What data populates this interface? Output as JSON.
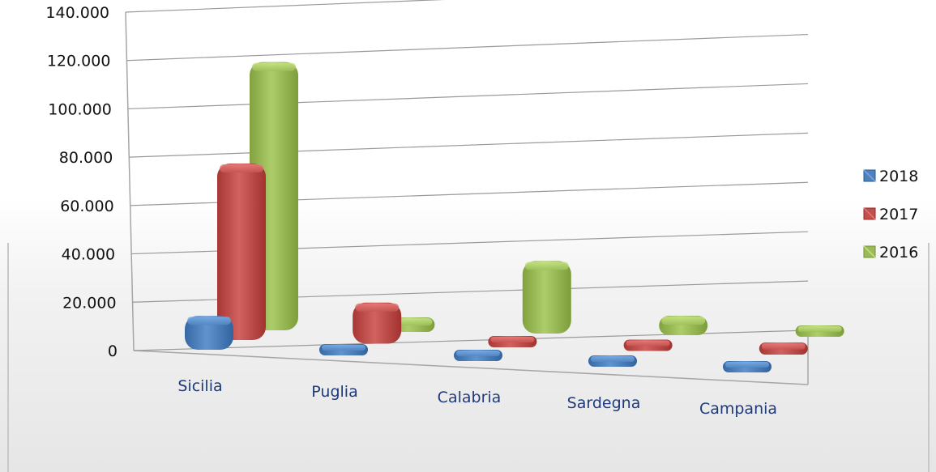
{
  "chart_data": {
    "type": "bar",
    "categories": [
      "Sicilia",
      "Puglia",
      "Calabria",
      "Sardegna",
      "Campania"
    ],
    "series": [
      {
        "name": "2018",
        "values": [
          14000,
          1200,
          1000,
          1500,
          1000
        ],
        "color": "#4f81bd"
      },
      {
        "name": "2017",
        "values": [
          73000,
          17000,
          4000,
          4000,
          5000
        ],
        "color": "#c0504d"
      },
      {
        "name": "2016",
        "values": [
          111000,
          6000,
          30000,
          8000,
          2000
        ],
        "color": "#9bbb59"
      }
    ],
    "yticks": [
      "0",
      "20.000",
      "40.000",
      "60.000",
      "80.000",
      "100.000",
      "120.000",
      "140.000"
    ],
    "ylim": [
      0,
      140000
    ],
    "title": "",
    "xlabel": "",
    "ylabel": "",
    "legend_position": "right",
    "grid": true,
    "style": "3d-column-rounded"
  }
}
